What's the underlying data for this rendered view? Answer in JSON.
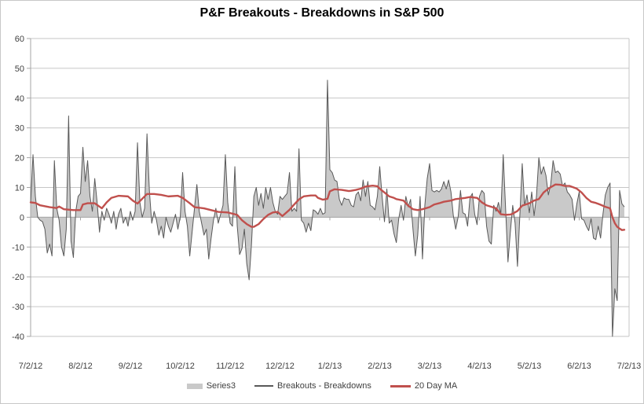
{
  "chart_data": {
    "type": "area+line",
    "title": "P&F Breakouts - Breakdowns in S&P 500",
    "x_tick_labels": [
      "7/2/12",
      "8/2/12",
      "9/2/12",
      "10/2/12",
      "11/2/12",
      "12/2/12",
      "1/2/13",
      "2/2/13",
      "3/2/13",
      "4/2/13",
      "5/2/13",
      "6/2/13",
      "7/2/13"
    ],
    "y_tick_labels": [
      60,
      50,
      40,
      30,
      20,
      10,
      0,
      -10,
      -20,
      -30,
      -40
    ],
    "ylim": [
      -40,
      60
    ],
    "layout": {
      "legend_position": "bottom-center",
      "gridlines": "horizontal",
      "x_axis_crosses_at": 0,
      "x_axis_labels_position": "low"
    },
    "colors": {
      "area": "#c9c9c9",
      "daily_line": "#595959",
      "ma_line": "#c0504d",
      "grid": "#c6c6c6",
      "axis": "#a6a6a6",
      "text": "#3f3f3f",
      "border": "#c8c8c8",
      "background": "#ffffff"
    },
    "series_notes": "daily = Series3 area and Breakouts - Breakdowns line (same data, ~251 trading days 7/2/12-7/1/13, values estimated from pixels); ma20 = [day-index, value] anchor points of red 20 Day MA",
    "daily": [
      5,
      21,
      7,
      0,
      -1,
      -1.5,
      -4,
      -12,
      -9,
      -13,
      19,
      3,
      -1,
      -10,
      -13,
      -4,
      34,
      -8,
      -13.5,
      2,
      7,
      8,
      23.5,
      12,
      19,
      7,
      2,
      13,
      5,
      -5,
      2,
      -1,
      3,
      1,
      -2,
      2,
      -4,
      1,
      3,
      -2,
      0,
      -3,
      2,
      -1,
      2,
      25,
      5,
      0,
      3,
      28,
      9,
      -2,
      2,
      -1,
      -6,
      -3,
      -7,
      0,
      -3,
      -5,
      -2,
      1,
      -4,
      0,
      15,
      2,
      -3,
      -13,
      -5,
      3,
      11,
      2,
      -2,
      -6,
      -4,
      -14,
      -7,
      -1,
      3,
      -2,
      1,
      4,
      21,
      5,
      -2,
      -3,
      17,
      -3,
      -12.5,
      -10.5,
      -4,
      -15.5,
      -21,
      -9,
      7,
      10,
      4,
      8,
      3,
      10,
      6,
      10,
      5,
      2,
      1,
      7,
      6,
      7,
      8,
      15,
      2,
      3,
      2,
      23,
      -1,
      -2,
      -5,
      -2,
      -4.5,
      2.5,
      2,
      1,
      3,
      1,
      1.5,
      46,
      16,
      15,
      12.5,
      12,
      6,
      4,
      6.5,
      6,
      6,
      4,
      3.5,
      7.5,
      8.5,
      5.5,
      12.5,
      7,
      12,
      4,
      3.5,
      2.5,
      7,
      17,
      7,
      -1.5,
      9.5,
      -2,
      -1,
      -5.5,
      -8.5,
      -0.5,
      4,
      -1,
      7,
      3.5,
      6,
      -4,
      -13,
      -6,
      7,
      -14,
      4,
      13,
      18,
      9,
      8.5,
      9,
      8.5,
      9.5,
      12,
      9.5,
      12.5,
      8.5,
      0.5,
      -4,
      0,
      9,
      1.5,
      1,
      -3,
      6.5,
      8,
      1,
      -2.5,
      7,
      9,
      8,
      -3,
      -8,
      -9,
      4,
      2,
      5,
      1,
      21,
      3,
      -15,
      -5,
      4,
      -2,
      -16.5,
      0.5,
      18,
      4,
      7.5,
      1.5,
      8.5,
      0.5,
      7,
      20,
      14.5,
      17,
      14,
      7.5,
      11,
      19,
      15,
      15.5,
      14.5,
      10.5,
      11.5,
      8.5,
      7.5,
      6,
      -1,
      4.5,
      8.5,
      -0.5,
      -1,
      -3,
      -4.5,
      -0.5,
      -7,
      -7.5,
      -3,
      -7,
      1,
      7.5,
      10,
      11.5,
      -40,
      -24,
      -28,
      9,
      4.5,
      3.5
    ],
    "ma20": [
      [
        0,
        5
      ],
      [
        2,
        4.8
      ],
      [
        4,
        4
      ],
      [
        8,
        3.4
      ],
      [
        11,
        3.1
      ],
      [
        12,
        3.6
      ],
      [
        14,
        2.7
      ],
      [
        18,
        2.4
      ],
      [
        21,
        2.4
      ],
      [
        22,
        4.3
      ],
      [
        24,
        4.7
      ],
      [
        27,
        4.7
      ],
      [
        30,
        3
      ],
      [
        32,
        5
      ],
      [
        34,
        6.5
      ],
      [
        37,
        7.2
      ],
      [
        41,
        7
      ],
      [
        43,
        5.6
      ],
      [
        45,
        4.6
      ],
      [
        49,
        7.8
      ],
      [
        52,
        7.8
      ],
      [
        55,
        7.5
      ],
      [
        58,
        7
      ],
      [
        62,
        7.2
      ],
      [
        64,
        6.5
      ],
      [
        67,
        4.7
      ],
      [
        69,
        3.4
      ],
      [
        73,
        3
      ],
      [
        76,
        2.4
      ],
      [
        79,
        1.8
      ],
      [
        83,
        1.6
      ],
      [
        87,
        0.8
      ],
      [
        89,
        -1
      ],
      [
        91,
        -2.3
      ],
      [
        93,
        -3.2
      ],
      [
        94,
        -3.2
      ],
      [
        96,
        -2.3
      ],
      [
        98,
        -0.6
      ],
      [
        100,
        0.8
      ],
      [
        102,
        1.6
      ],
      [
        104,
        1.8
      ],
      [
        106,
        0.4
      ],
      [
        109,
        2.5
      ],
      [
        111,
        4.3
      ],
      [
        113,
        6
      ],
      [
        115,
        7
      ],
      [
        118,
        7.3
      ],
      [
        120,
        7.3
      ],
      [
        121,
        6.5
      ],
      [
        123,
        5.9
      ],
      [
        125,
        6.2
      ],
      [
        126,
        8.7
      ],
      [
        128,
        9.4
      ],
      [
        131,
        9.2
      ],
      [
        134,
        8.8
      ],
      [
        135,
        8.9
      ],
      [
        137,
        9.2
      ],
      [
        139,
        9.6
      ],
      [
        141,
        10.3
      ],
      [
        144,
        10.6
      ],
      [
        146,
        10.4
      ],
      [
        147,
        9.6
      ],
      [
        149,
        8.3
      ],
      [
        151,
        7
      ],
      [
        153,
        6.5
      ],
      [
        154,
        6.1
      ],
      [
        157,
        5.6
      ],
      [
        159,
        3.9
      ],
      [
        161,
        2.7
      ],
      [
        163,
        2.4
      ],
      [
        165,
        2.7
      ],
      [
        168,
        3.4
      ],
      [
        170,
        4.3
      ],
      [
        172,
        4.7
      ],
      [
        174,
        5.2
      ],
      [
        177,
        5.6
      ],
      [
        179,
        6.1
      ],
      [
        181,
        6.3
      ],
      [
        183,
        6.5
      ],
      [
        185,
        6.8
      ],
      [
        188,
        6.5
      ],
      [
        190,
        5
      ],
      [
        192,
        4
      ],
      [
        194,
        3.5
      ],
      [
        196,
        3
      ],
      [
        198,
        1
      ],
      [
        200,
        0.8
      ],
      [
        202,
        0.9
      ],
      [
        203,
        1.2
      ],
      [
        205,
        2.1
      ],
      [
        207,
        3.9
      ],
      [
        210,
        4.7
      ],
      [
        212,
        5.6
      ],
      [
        214,
        6.1
      ],
      [
        216,
        8.3
      ],
      [
        218,
        9.6
      ],
      [
        221,
        11
      ],
      [
        223,
        10.9
      ],
      [
        225,
        10.5
      ],
      [
        227,
        10.5
      ],
      [
        230,
        9.6
      ],
      [
        232,
        8.3
      ],
      [
        234,
        6.5
      ],
      [
        236,
        5.2
      ],
      [
        238,
        4.8
      ],
      [
        240,
        4.2
      ],
      [
        242,
        3.5
      ],
      [
        244,
        3
      ],
      [
        245,
        0
      ],
      [
        246,
        -2
      ],
      [
        247,
        -3.2
      ],
      [
        248,
        -3.8
      ],
      [
        249,
        -4.3
      ],
      [
        250,
        -4.2
      ]
    ]
  },
  "legend": [
    {
      "label": "Series3",
      "swatch": "area",
      "color": "#c9c9c9"
    },
    {
      "label": "Breakouts - Breakdowns",
      "swatch": "line",
      "color": "#595959"
    },
    {
      "label": "20 Day MA",
      "swatch": "thick-line",
      "color": "#c0504d"
    }
  ]
}
